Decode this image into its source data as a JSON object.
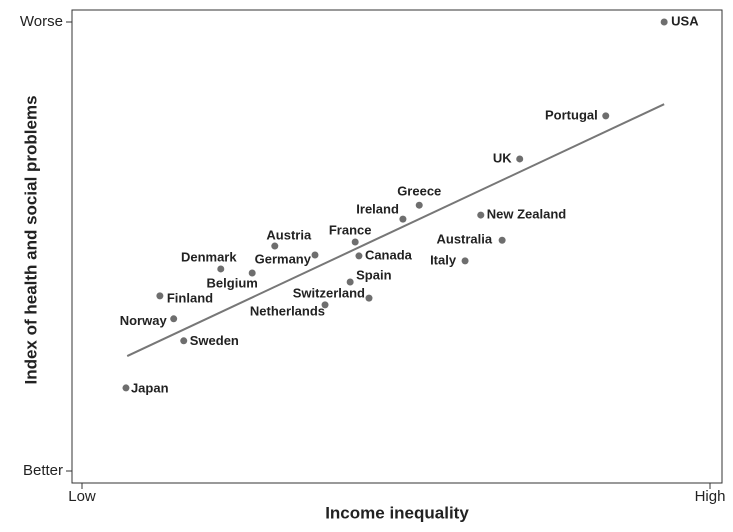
{
  "chart_data": {
    "type": "scatter",
    "x_label": "Income inequality",
    "y_label": "Index of health and social problems",
    "xlim": [
      0,
      100
    ],
    "ylim": [
      0,
      100
    ],
    "xticks": [
      {
        "value": 0,
        "label": "Low"
      },
      {
        "value": 100,
        "label": "High"
      }
    ],
    "yticks": [
      {
        "value": 0,
        "label": "Better"
      },
      {
        "value": 100,
        "label": "Worse"
      }
    ],
    "color": "#6e6e6e",
    "labels": [
      "USA",
      "Portugal",
      "UK",
      "Greece",
      "Ireland",
      "New Zealand",
      "Australia",
      "Italy",
      "France",
      "Canada",
      "Spain",
      "Switzerland",
      "Netherlands",
      "Austria",
      "Germany",
      "Denmark",
      "Belgium",
      "Finland",
      "Norway",
      "Sweden",
      "Japan"
    ],
    "x": [
      92.7,
      83.4,
      69.7,
      53.7,
      51.1,
      63.5,
      66.9,
      61.0,
      43.5,
      44.1,
      42.7,
      45.7,
      38.7,
      30.7,
      37.1,
      22.1,
      27.1,
      12.4,
      14.6,
      16.2,
      7.0
    ],
    "y": [
      100,
      79.1,
      69.5,
      59.2,
      56.1,
      57.0,
      51.4,
      46.8,
      51.0,
      47.9,
      42.1,
      38.5,
      37.0,
      50.1,
      48.1,
      45.0,
      44.1,
      39.0,
      33.9,
      29.0,
      18.5
    ],
    "trendline": {
      "x": [
        7.2,
        92.7
      ],
      "y": [
        25.6,
        81.7
      ],
      "color": "#777777"
    }
  }
}
